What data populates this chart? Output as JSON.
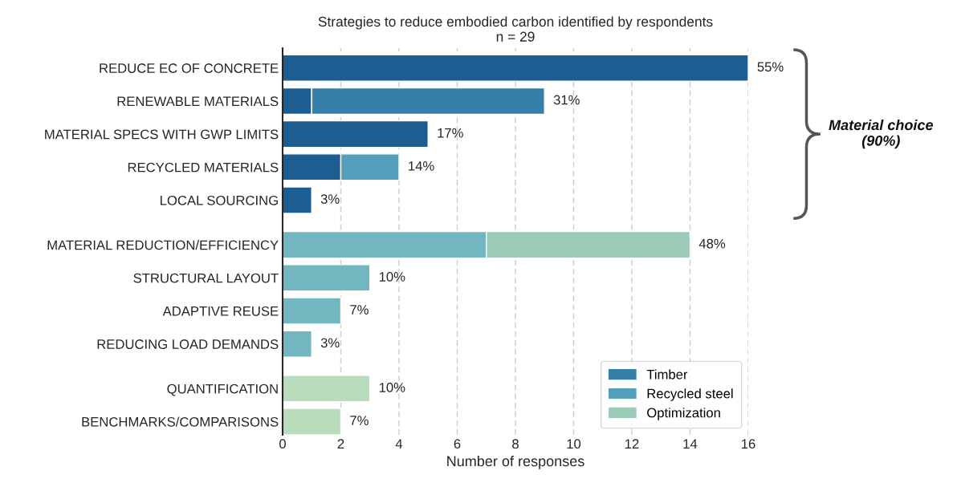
{
  "chart_data": {
    "type": "bar",
    "orientation": "horizontal",
    "stacked": true,
    "title": "Strategies to reduce embodied carbon identified by respondents",
    "subtitle": "n = 29",
    "xlabel": "Number of responses",
    "categories": [
      "REDUCE EC OF CONCRETE",
      "RENEWABLE MATERIALS",
      "MATERIAL SPECS WITH GWP LIMITS",
      "RECYCLED MATERIALS",
      "LOCAL SOURCING",
      null,
      "MATERIAL REDUCTION/EFFICIENCY",
      "STRUCTURAL LAYOUT",
      "ADAPTIVE REUSE",
      "REDUCING LOAD DEMANDS",
      null,
      "QUANTIFICATION",
      "BENCHMARKS/COMPARISONS"
    ],
    "series": [
      {
        "values": [
          16,
          1,
          5,
          2,
          1,
          null,
          7,
          3,
          2,
          1,
          null,
          3,
          2
        ],
        "colors": [
          "#1c5e91",
          "#1c5e91",
          "#1c5e91",
          "#1c5e91",
          "#1c5e91",
          null,
          "#72b7bf",
          "#72b7bf",
          "#72b7bf",
          "#72b7bf",
          null,
          "#b8dcbc",
          "#b8dcbc"
        ]
      },
      {
        "name": "Timber",
        "color": "#367fa9",
        "values": [
          null,
          8,
          null,
          null,
          null,
          null,
          null,
          null,
          null,
          null,
          null,
          null,
          null
        ]
      },
      {
        "name": "Recycled steel",
        "color": "#559fbd",
        "values": [
          null,
          null,
          null,
          2,
          null,
          null,
          null,
          null,
          null,
          null,
          null,
          null,
          null
        ]
      },
      {
        "name": "Optimization",
        "color": "#9ccbb8",
        "values": [
          null,
          null,
          null,
          null,
          null,
          null,
          7,
          null,
          null,
          null,
          null,
          null,
          null
        ]
      }
    ],
    "xlim": [
      0,
      16
    ],
    "xticks": [
      0,
      2,
      4,
      6,
      8,
      10,
      12,
      14,
      16
    ],
    "grid": "x",
    "legend": "bottom right",
    "annotations": [
      "Material choice\n(90%)",
      {
        "text": "55%",
        "x": 16,
        "y": "REDUCE EC OF CONCRETE"
      },
      {
        "text": "31%",
        "x": 9,
        "y": "RENEWABLE MATERIALS"
      },
      {
        "text": "17%",
        "x": 5,
        "y": "MATERIAL SPECS WITH GWP LIMITS"
      },
      {
        "text": "14%",
        "x": 4,
        "y": "RECYCLED MATERIALS"
      },
      {
        "text": "3%",
        "x": 1,
        "y": "LOCAL SOURCING"
      },
      {
        "text": "48%",
        "x": 14,
        "y": "MATERIAL REDUCTION/EFFICIENCY"
      },
      {
        "text": "10%",
        "x": 3,
        "y": "STRUCTURAL LAYOUT"
      },
      {
        "text": "7%",
        "x": 2,
        "y": "ADAPTIVE REUSE"
      },
      {
        "text": "3%",
        "x": 1,
        "y": "REDUCING LOAD DEMANDS"
      },
      {
        "text": "10%",
        "x": 3,
        "y": "QUANTIFICATION"
      },
      {
        "text": "7%",
        "x": 2,
        "y": "BENCHMARKS/COMPARISONS"
      }
    ]
  }
}
